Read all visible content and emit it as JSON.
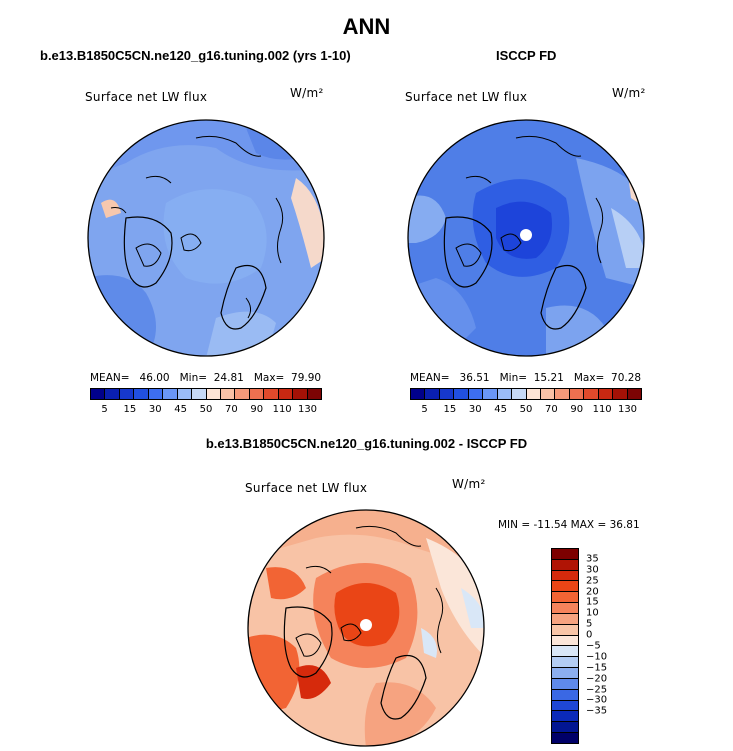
{
  "figure": {
    "title": "ANN"
  },
  "panels": [
    {
      "title": "b.e13.B1850C5CN.ne120_g16.tuning.002 (yrs 1-10)",
      "field": "Surface net LW flux",
      "units": "W/m²",
      "mean_label": "MEAN=",
      "mean": "46.00",
      "min_label": "Min=",
      "min": "24.81",
      "max_label": "Max=",
      "max": "79.90"
    },
    {
      "title": "ISCCP FD",
      "field": "Surface net LW flux",
      "units": "W/m²",
      "mean_label": "MEAN=",
      "mean": "36.51",
      "min_label": "Min=",
      "min": "15.21",
      "max_label": "Max=",
      "max": "70.28"
    }
  ],
  "diff_panel": {
    "title": "b.e13.B1850C5CN.ne120_g16.tuning.002 - ISCCP FD",
    "field": "Surface net LW flux",
    "units": "W/m²",
    "minmax": "MIN = -11.54 MAX =  36.81"
  },
  "colorbar_abs": {
    "colors": [
      "#00008b",
      "#0a1fb0",
      "#1638cc",
      "#2150e0",
      "#3d6ef0",
      "#6a96f5",
      "#9bbcf7",
      "#c6d9f7",
      "#fde4d6",
      "#f9c1a6",
      "#f59a7a",
      "#ee7050",
      "#e24a2c",
      "#c82812",
      "#a31106",
      "#7c0404"
    ],
    "tick_labels": [
      "5",
      "15",
      "30",
      "45",
      "50",
      "70",
      "90",
      "110",
      "130"
    ]
  },
  "colorbar_diff": {
    "colors": [
      "#7c0000",
      "#b01405",
      "#d62a0c",
      "#ea4516",
      "#f26434",
      "#f5835b",
      "#f6a380",
      "#f8c5a7",
      "#fbe6d9",
      "#d9e7f7",
      "#b3cdf4",
      "#8caff0",
      "#5f8aeb",
      "#3a68e4",
      "#1f47d6",
      "#0b2ab9",
      "#021692",
      "#000068"
    ],
    "tick_labels": [
      "35",
      "30",
      "25",
      "20",
      "15",
      "10",
      "5",
      "0",
      "−5",
      "−10",
      "−15",
      "−20",
      "−25",
      "−30",
      "−35"
    ]
  }
}
